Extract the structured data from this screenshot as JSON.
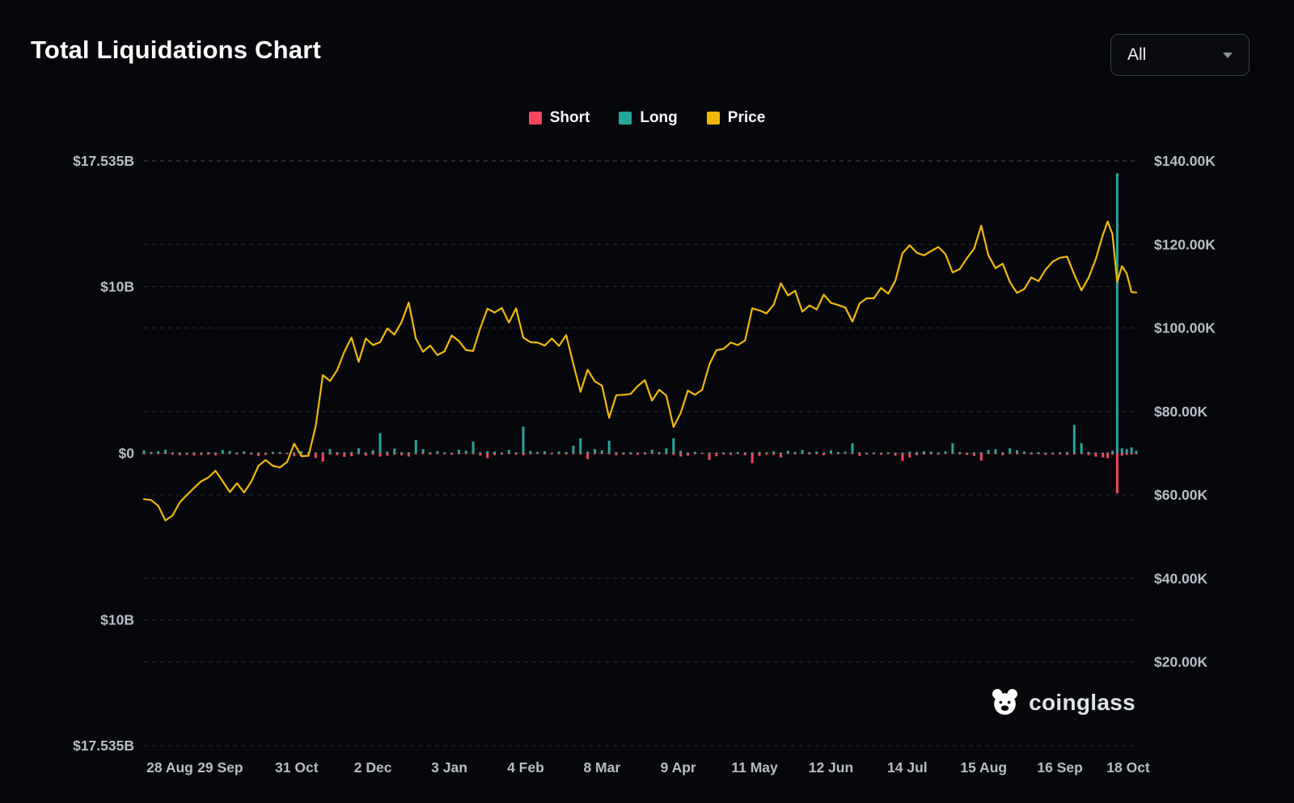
{
  "header": {
    "title": "Total Liquidations Chart",
    "range_selector": {
      "value": "All"
    }
  },
  "footer": {
    "logo_text": "coinglass"
  },
  "colors": {
    "background": "#06070b",
    "short": "#f6465d",
    "long": "#26a69a",
    "price": "#f0b90b",
    "grid": "#ffffff",
    "axis_text": "#b8bcc6"
  },
  "chart_data": {
    "type": "mixed",
    "title": "Total Liquidations Chart",
    "legend_position": "top-center",
    "grid": "dashed",
    "x": [
      "2024-08-28",
      "2024-08-31",
      "2024-09-03",
      "2024-09-06",
      "2024-09-09",
      "2024-09-12",
      "2024-09-15",
      "2024-09-18",
      "2024-09-21",
      "2024-09-24",
      "2024-09-27",
      "2024-09-30",
      "2024-10-03",
      "2024-10-06",
      "2024-10-09",
      "2024-10-12",
      "2024-10-15",
      "2024-10-18",
      "2024-10-21",
      "2024-10-24",
      "2024-10-27",
      "2024-10-30",
      "2024-11-02",
      "2024-11-05",
      "2024-11-08",
      "2024-11-11",
      "2024-11-14",
      "2024-11-17",
      "2024-11-20",
      "2024-11-23",
      "2024-11-26",
      "2024-11-29",
      "2024-12-02",
      "2024-12-05",
      "2024-12-08",
      "2024-12-11",
      "2024-12-14",
      "2024-12-17",
      "2024-12-20",
      "2024-12-23",
      "2024-12-26",
      "2024-12-29",
      "2025-01-01",
      "2025-01-04",
      "2025-01-07",
      "2025-01-10",
      "2025-01-13",
      "2025-01-16",
      "2025-01-19",
      "2025-01-22",
      "2025-01-25",
      "2025-01-28",
      "2025-01-31",
      "2025-02-03",
      "2025-02-06",
      "2025-02-09",
      "2025-02-12",
      "2025-02-15",
      "2025-02-18",
      "2025-02-21",
      "2025-02-24",
      "2025-02-27",
      "2025-03-02",
      "2025-03-05",
      "2025-03-08",
      "2025-03-11",
      "2025-03-14",
      "2025-03-17",
      "2025-03-20",
      "2025-03-23",
      "2025-03-26",
      "2025-03-29",
      "2025-04-01",
      "2025-04-04",
      "2025-04-07",
      "2025-04-10",
      "2025-04-13",
      "2025-04-16",
      "2025-04-19",
      "2025-04-22",
      "2025-04-25",
      "2025-04-28",
      "2025-05-01",
      "2025-05-04",
      "2025-05-07",
      "2025-05-10",
      "2025-05-13",
      "2025-05-16",
      "2025-05-19",
      "2025-05-22",
      "2025-05-25",
      "2025-05-28",
      "2025-05-31",
      "2025-06-03",
      "2025-06-06",
      "2025-06-09",
      "2025-06-12",
      "2025-06-15",
      "2025-06-18",
      "2025-06-21",
      "2025-06-24",
      "2025-06-27",
      "2025-06-30",
      "2025-07-03",
      "2025-07-06",
      "2025-07-09",
      "2025-07-12",
      "2025-07-15",
      "2025-07-18",
      "2025-07-21",
      "2025-07-24",
      "2025-07-27",
      "2025-07-30",
      "2025-08-02",
      "2025-08-05",
      "2025-08-08",
      "2025-08-11",
      "2025-08-14",
      "2025-08-17",
      "2025-08-20",
      "2025-08-23",
      "2025-08-26",
      "2025-08-29",
      "2025-09-01",
      "2025-09-04",
      "2025-09-07",
      "2025-09-10",
      "2025-09-13",
      "2025-09-16",
      "2025-09-19",
      "2025-09-22",
      "2025-09-25",
      "2025-09-28",
      "2025-10-01",
      "2025-10-04",
      "2025-10-06",
      "2025-10-08",
      "2025-10-10",
      "2025-10-12",
      "2025-10-14",
      "2025-10-16",
      "2025-10-18"
    ],
    "series": [
      {
        "name": "Short",
        "type": "bar",
        "axis": "left",
        "sign": -1,
        "color": "#f6465d",
        "unit": "B",
        "values": [
          0.06,
          0.05,
          0.04,
          0.05,
          0.09,
          0.12,
          0.1,
          0.14,
          0.11,
          0.08,
          0.13,
          0.05,
          0.04,
          0.07,
          0.04,
          0.08,
          0.16,
          0.1,
          0.05,
          0.04,
          0.06,
          0.18,
          0.04,
          0.06,
          0.28,
          0.5,
          0.08,
          0.12,
          0.22,
          0.18,
          0.06,
          0.14,
          0.08,
          0.2,
          0.15,
          0.09,
          0.12,
          0.2,
          0.06,
          0.05,
          0.08,
          0.04,
          0.07,
          0.09,
          0.06,
          0.05,
          0.06,
          0.14,
          0.3,
          0.12,
          0.08,
          0.05,
          0.09,
          0.12,
          0.06,
          0.05,
          0.07,
          0.06,
          0.04,
          0.07,
          0.05,
          0.08,
          0.35,
          0.06,
          0.05,
          0.06,
          0.12,
          0.08,
          0.07,
          0.09,
          0.08,
          0.04,
          0.07,
          0.06,
          0.1,
          0.2,
          0.14,
          0.06,
          0.05,
          0.4,
          0.18,
          0.08,
          0.1,
          0.05,
          0.12,
          0.6,
          0.15,
          0.08,
          0.1,
          0.25,
          0.05,
          0.07,
          0.04,
          0.08,
          0.06,
          0.12,
          0.05,
          0.06,
          0.05,
          0.05,
          0.16,
          0.08,
          0.06,
          0.09,
          0.05,
          0.14,
          0.45,
          0.25,
          0.12,
          0.08,
          0.07,
          0.08,
          0.05,
          0.05,
          0.07,
          0.1,
          0.16,
          0.45,
          0.05,
          0.04,
          0.12,
          0.05,
          0.06,
          0.05,
          0.08,
          0.06,
          0.1,
          0.08,
          0.07,
          0.1,
          0.08,
          0.05,
          0.12,
          0.2,
          0.25,
          0.3,
          0.08,
          2.4,
          0.15,
          0.1,
          0.08,
          0.06
        ]
      },
      {
        "name": "Long",
        "type": "bar",
        "axis": "left",
        "sign": 1,
        "color": "#26a69a",
        "unit": "B",
        "values": [
          0.18,
          0.08,
          0.12,
          0.22,
          0.06,
          0.05,
          0.04,
          0.06,
          0.05,
          0.07,
          0.05,
          0.2,
          0.14,
          0.05,
          0.11,
          0.04,
          0.05,
          0.04,
          0.09,
          0.08,
          0.04,
          0.05,
          0.13,
          0.08,
          0.05,
          0.06,
          0.25,
          0.07,
          0.06,
          0.08,
          0.3,
          0.06,
          0.18,
          1.2,
          0.1,
          0.28,
          0.06,
          0.07,
          0.8,
          0.25,
          0.07,
          0.12,
          0.06,
          0.04,
          0.22,
          0.15,
          0.7,
          0.05,
          0.12,
          0.1,
          0.05,
          0.2,
          0.06,
          1.6,
          0.14,
          0.08,
          0.12,
          0.04,
          0.1,
          0.08,
          0.45,
          0.9,
          0.1,
          0.25,
          0.18,
          0.75,
          0.07,
          0.05,
          0.06,
          0.04,
          0.06,
          0.22,
          0.08,
          0.3,
          0.9,
          0.15,
          0.05,
          0.08,
          0.04,
          0.05,
          0.04,
          0.06,
          0.05,
          0.07,
          0.06,
          0.05,
          0.08,
          0.06,
          0.12,
          0.04,
          0.15,
          0.08,
          0.2,
          0.07,
          0.1,
          0.05,
          0.18,
          0.08,
          0.1,
          0.6,
          0.06,
          0.04,
          0.05,
          0.04,
          0.06,
          0.04,
          0.05,
          0.1,
          0.08,
          0.12,
          0.1,
          0.05,
          0.12,
          0.6,
          0.08,
          0.04,
          0.05,
          0.06,
          0.2,
          0.25,
          0.06,
          0.3,
          0.18,
          0.1,
          0.05,
          0.07,
          0.04,
          0.05,
          0.06,
          0.08,
          1.7,
          0.6,
          0.08,
          0.05,
          0.04,
          0.05,
          0.15,
          16.8,
          0.3,
          0.25,
          0.35,
          0.15
        ]
      },
      {
        "name": "Price",
        "type": "line",
        "axis": "right",
        "color": "#f0b90b",
        "unit": "K",
        "values": [
          59.0,
          58.8,
          57.4,
          53.9,
          55.1,
          58.2,
          60.0,
          61.7,
          63.3,
          64.2,
          65.8,
          63.3,
          60.7,
          62.8,
          60.6,
          63.2,
          67.0,
          68.4,
          67.0,
          66.6,
          67.9,
          72.3,
          69.3,
          69.4,
          76.5,
          88.7,
          87.3,
          89.9,
          94.3,
          97.7,
          91.9,
          97.5,
          95.9,
          96.6,
          99.9,
          98.4,
          101.4,
          106.1,
          97.5,
          94.3,
          95.8,
          93.5,
          94.4,
          98.2,
          96.9,
          94.7,
          94.5,
          100.0,
          104.6,
          103.7,
          104.8,
          101.3,
          104.7,
          97.7,
          96.6,
          96.5,
          95.8,
          97.5,
          95.7,
          98.3,
          91.4,
          84.7,
          90.0,
          87.2,
          86.2,
          78.5,
          83.9,
          84.0,
          84.2,
          86.1,
          87.5,
          82.6,
          85.2,
          83.8,
          76.3,
          79.6,
          85.0,
          84.0,
          85.2,
          91.2,
          94.7,
          95.0,
          96.5,
          95.9,
          97.0,
          104.7,
          104.2,
          103.5,
          105.6,
          110.7,
          107.8,
          108.9,
          103.9,
          105.4,
          104.4,
          108.0,
          106.0,
          105.5,
          104.9,
          101.5,
          105.9,
          107.1,
          107.1,
          109.6,
          108.2,
          111.3,
          117.9,
          119.8,
          118.0,
          117.4,
          118.4,
          119.4,
          117.7,
          113.3,
          114.1,
          116.7,
          119.0,
          124.5,
          117.4,
          114.3,
          115.4,
          111.0,
          108.4,
          109.3,
          112.1,
          111.2,
          114.0,
          115.9,
          116.8,
          117.1,
          112.8,
          109.0,
          112.0,
          116.5,
          122.3,
          125.5,
          122.5,
          111.0,
          114.8,
          113.0,
          108.6,
          108.5
        ]
      }
    ],
    "left_axis": {
      "min": -17.535,
      "max": 17.535,
      "unit": "B",
      "ticks": [
        {
          "value": 17.535,
          "label": "$17.535B"
        },
        {
          "value": 10,
          "label": "$10B"
        },
        {
          "value": 0,
          "label": "$0"
        },
        {
          "value": -10,
          "label": "$10B"
        },
        {
          "value": -17.535,
          "label": "$17.535B"
        }
      ]
    },
    "right_axis": {
      "min": 0,
      "max": 140,
      "unit": "K",
      "ticks": [
        {
          "value": 140,
          "label": "$140.00K"
        },
        {
          "value": 120,
          "label": "$120.00K"
        },
        {
          "value": 100,
          "label": "$100.00K"
        },
        {
          "value": 80,
          "label": "$80.00K"
        },
        {
          "value": 60,
          "label": "$60.00K"
        },
        {
          "value": 40,
          "label": "$40.00K"
        },
        {
          "value": 20,
          "label": "$20.00K"
        }
      ]
    },
    "x_ticks": [
      {
        "date": "2024-08-28",
        "label": "28 Aug"
      },
      {
        "date": "2024-09-29",
        "label": "29 Sep"
      },
      {
        "date": "2024-10-31",
        "label": "31 Oct"
      },
      {
        "date": "2024-12-02",
        "label": "2 Dec"
      },
      {
        "date": "2025-01-03",
        "label": "3 Jan"
      },
      {
        "date": "2025-02-04",
        "label": "4 Feb"
      },
      {
        "date": "2025-03-08",
        "label": "8 Mar"
      },
      {
        "date": "2025-04-09",
        "label": "9 Apr"
      },
      {
        "date": "2025-05-11",
        "label": "11 May"
      },
      {
        "date": "2025-06-12",
        "label": "12 Jun"
      },
      {
        "date": "2025-07-14",
        "label": "14 Jul"
      },
      {
        "date": "2025-08-15",
        "label": "15 Aug"
      },
      {
        "date": "2025-09-16",
        "label": "16 Sep"
      },
      {
        "date": "2025-10-18",
        "label": "18 Oct"
      }
    ]
  }
}
